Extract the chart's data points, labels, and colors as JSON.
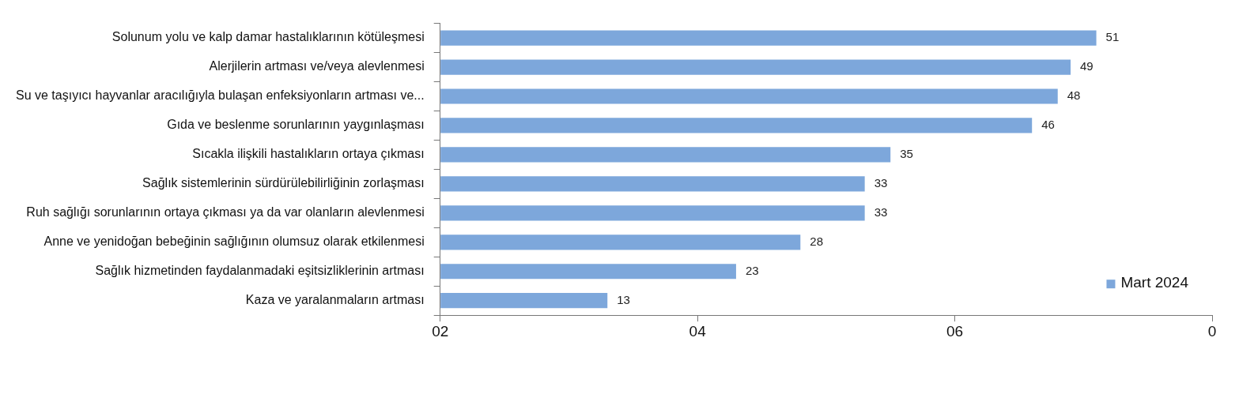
{
  "chart_data": {
    "type": "bar",
    "orientation": "horizontal",
    "categories": [
      "Solunum yolu ve kalp damar hastalıklarının kötüleşmesi",
      "Alerjilerin artması ve/veya alevlenmesi",
      "Su ve taşıyıcı hayvanlar aracılığıyla bulaşan enfeksiyonların artması ve...",
      "Gıda ve beslenme sorunlarının yaygınlaşması",
      "Sıcakla ilişkili hastalıkların ortaya çıkması",
      "Sağlık sistemlerinin sürdürülebilirliğinin zorlaşması",
      "Ruh sağlığı sorunlarının ortaya çıkması ya da var olanların alevlenmesi",
      "Anne ve yenidoğan bebeğinin sağlığının olumsuz olarak etkilenmesi",
      "Sağlık hizmetinden faydalanmadaki eşitsizliklerinin artması",
      "Kaza ve yaralanmaların artması"
    ],
    "series": [
      {
        "name": "Mart 2024",
        "color": "#7da7db",
        "values": [
          51,
          49,
          48,
          46,
          35,
          33,
          33,
          28,
          23,
          13
        ]
      }
    ],
    "xlim": [
      0,
      60
    ],
    "xticks": [
      {
        "value": 0,
        "label": null
      },
      {
        "value": 20,
        "label": null
      },
      {
        "value": 40,
        "label": null
      },
      {
        "value": 60,
        "label": null
      }
    ],
    "annotations": [
      "02",
      "04",
      "06",
      "0"
    ],
    "data_labels": true,
    "grid": false,
    "legend": "bottom right"
  }
}
